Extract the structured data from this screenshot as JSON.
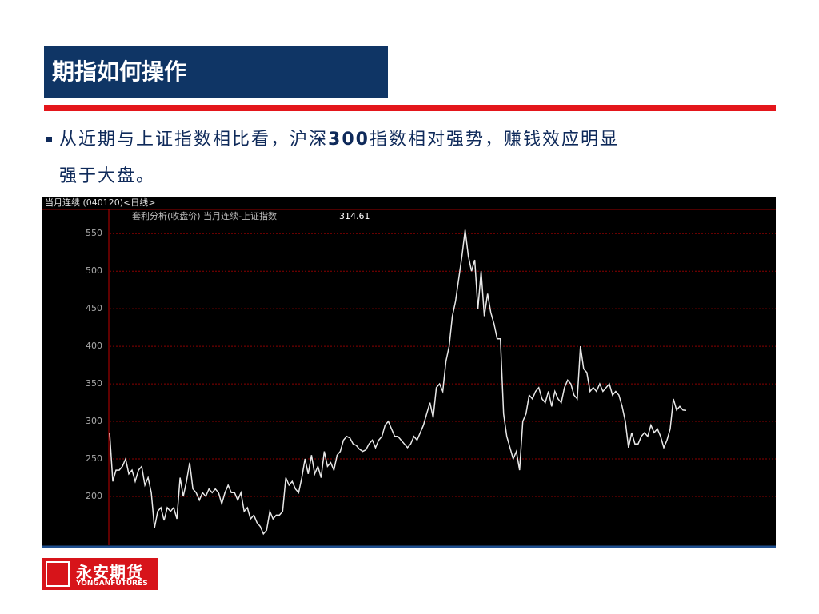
{
  "header": {
    "title": "期指如何操作"
  },
  "bullet": {
    "segments": [
      "从近期与上证指数相比看，沪深",
      "300",
      "指数相对强势，赚钱效应明显"
    ],
    "line2": "强于大盘。"
  },
  "chart_data": {
    "type": "line",
    "title": "当月连续 (040120)<日线>",
    "subtitle": "套利分析(收盘价) 当月连续-上证指数",
    "color": "#e8e8e8",
    "values": [
      285,
      220,
      235,
      235,
      240,
      250,
      230,
      235,
      220,
      235,
      240,
      215,
      225,
      205,
      158,
      180,
      185,
      168,
      185,
      180,
      185,
      170,
      225,
      200,
      220,
      245,
      210,
      205,
      195,
      205,
      200,
      210,
      205,
      210,
      205,
      190,
      205,
      215,
      205,
      205,
      195,
      205,
      180,
      185,
      170,
      175,
      165,
      160,
      150,
      155,
      180,
      170,
      175,
      175,
      180,
      225,
      215,
      220,
      210,
      205,
      225,
      250,
      230,
      255,
      230,
      240,
      225,
      260,
      240,
      245,
      235,
      255,
      260,
      275,
      280,
      278,
      270,
      268,
      263,
      260,
      262,
      270,
      275,
      265,
      275,
      280,
      295,
      300,
      290,
      280,
      280,
      275,
      270,
      265,
      270,
      280,
      275,
      285,
      295,
      310,
      325,
      305,
      345,
      350,
      340,
      380,
      400,
      440,
      460,
      490,
      520,
      555,
      520,
      500,
      515,
      450,
      500,
      440,
      470,
      445,
      430,
      410,
      410,
      310,
      280,
      265,
      250,
      260,
      235,
      300,
      310,
      335,
      330,
      340,
      345,
      330,
      325,
      340,
      320,
      340,
      330,
      325,
      345,
      355,
      350,
      335,
      330,
      400,
      370,
      365,
      340,
      345,
      340,
      350,
      340,
      345,
      350,
      335,
      340,
      335,
      320,
      300,
      265,
      285,
      270,
      270,
      280,
      285,
      280,
      295,
      285,
      290,
      280,
      265,
      275,
      290,
      330,
      315,
      320,
      315,
      314.61
    ],
    "ylim": [
      135,
      579
    ],
    "yticks": [
      200,
      250,
      300,
      350,
      400,
      450,
      500,
      550
    ],
    "grid": true
  },
  "logo": {
    "name": "永安期货",
    "english": "YONGANFUTURES"
  }
}
